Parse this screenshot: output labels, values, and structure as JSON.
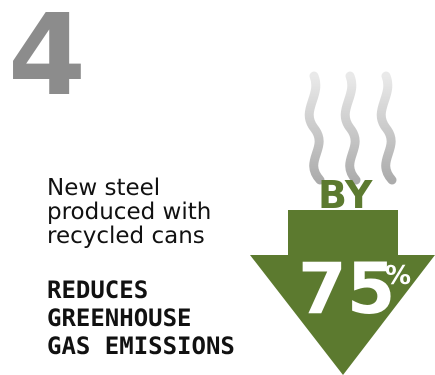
{
  "number": "4",
  "description": {
    "lines": [
      "New steel",
      "produced with",
      "recycled cans"
    ]
  },
  "headline": {
    "lines": [
      "REDUCES",
      "GREENHOUSE",
      "GAS EMISSIONS"
    ]
  },
  "badge": {
    "by": "BY",
    "percent": "75",
    "percent_symbol": "%"
  },
  "icons": {
    "steam": "steam-icon",
    "arrow": "down-arrow-icon"
  },
  "colors": {
    "number": "#8c8c8c",
    "green": "#5c7a2f",
    "text": "#111111",
    "steam": "#9a9a9a"
  }
}
